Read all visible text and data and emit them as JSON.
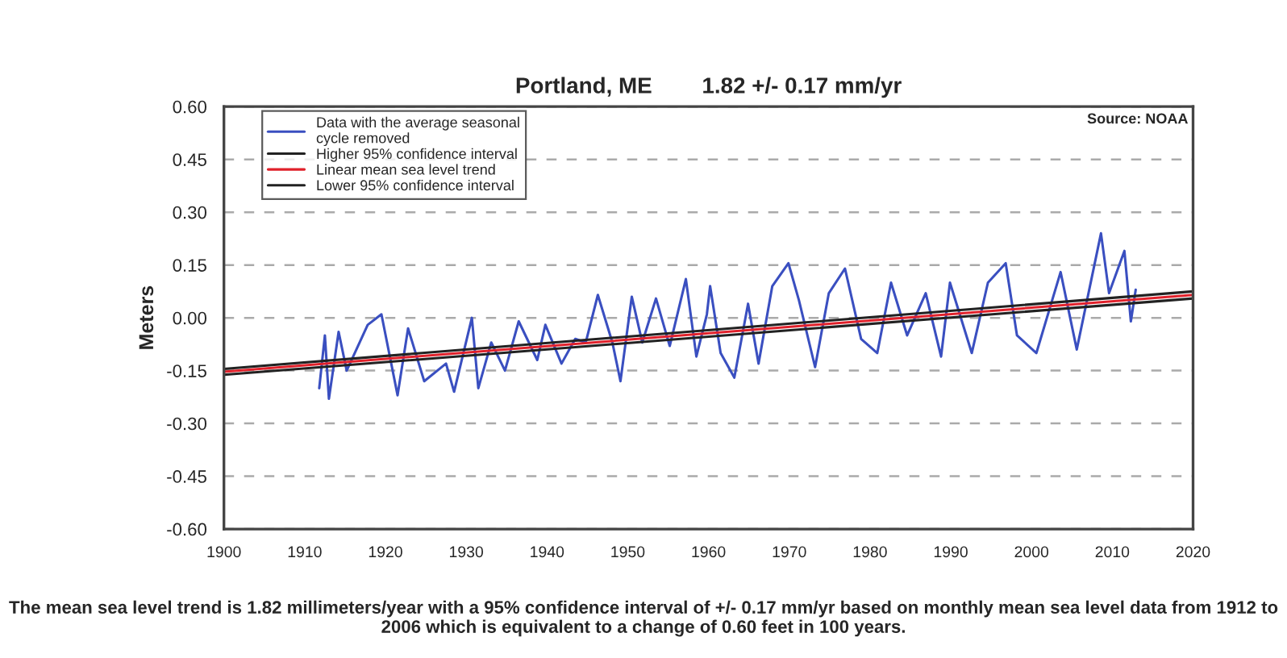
{
  "chart_data": {
    "type": "line",
    "title": "Portland, ME        1.82 +/- 0.17 mm/yr",
    "ylabel": "Meters",
    "xlim": [
      1900,
      2020
    ],
    "xticks": [
      1900,
      1910,
      1920,
      1930,
      1940,
      1950,
      1960,
      1970,
      1980,
      1990,
      2000,
      2010,
      2020
    ],
    "ylim": [
      -0.6,
      0.6
    ],
    "yticks": [
      {
        "value": -0.6,
        "label": "-0.60"
      },
      {
        "value": -0.45,
        "label": "-0.45"
      },
      {
        "value": -0.3,
        "label": "-0.30"
      },
      {
        "value": -0.15,
        "label": "-0.15"
      },
      {
        "value": 0,
        "label": "0.00"
      },
      {
        "value": 0.15,
        "label": "0.15"
      },
      {
        "value": 0.3,
        "label": "0.30"
      },
      {
        "value": 0.45,
        "label": "0.45"
      },
      {
        "value": 0.6,
        "label": "0.60"
      }
    ],
    "grid": "y",
    "legend": "top left",
    "line_style": "solid",
    "marker": "none",
    "series": [
      {
        "name": "Data with the average seasonal\ncycle removed",
        "color": "#3a4fc0",
        "x": [
          1911.8,
          1912.5,
          1913,
          1914.2,
          1915.2,
          1917.8,
          1919.5,
          1921.5,
          1922.8,
          1924.8,
          1927.5,
          1928.5,
          1930.7,
          1931.5,
          1933.1,
          1934.8,
          1936.5,
          1938.8,
          1939.8,
          1941.8,
          1943.5,
          1944.8,
          1946.3,
          1948.1,
          1949.1,
          1950.5,
          1951.8,
          1953.5,
          1955.2,
          1957.2,
          1958.5,
          1959.8,
          1960.2,
          1961.5,
          1963.2,
          1964.9,
          1966.2,
          1967.9,
          1969.9,
          1971.2,
          1973.2,
          1974.9,
          1976.9,
          1978.9,
          1980.9,
          1982.6,
          1984.6,
          1986.9,
          1988.8,
          1989.9,
          1992.6,
          1994.6,
          1996.8,
          1998.2,
          2000.6,
          2003.6,
          2005.6,
          2008.6,
          2009.6,
          2011.5,
          2012.3,
          2012.9
        ],
        "values": [
          -0.2,
          -0.05,
          -0.23,
          -0.04,
          -0.15,
          -0.02,
          0.01,
          -0.22,
          -0.03,
          -0.18,
          -0.13,
          -0.21,
          0.0,
          -0.2,
          -0.07,
          -0.15,
          -0.01,
          -0.12,
          -0.02,
          -0.13,
          -0.06,
          -0.07,
          0.065,
          -0.07,
          -0.18,
          0.06,
          -0.07,
          0.055,
          -0.08,
          0.11,
          -0.11,
          0.01,
          0.09,
          -0.1,
          -0.17,
          0.04,
          -0.13,
          0.09,
          0.155,
          0.05,
          -0.14,
          0.07,
          0.14,
          -0.06,
          -0.1,
          0.1,
          -0.05,
          0.07,
          -0.11,
          0.1,
          -0.1,
          0.1,
          0.155,
          -0.05,
          -0.1,
          0.13,
          -0.09,
          0.24,
          0.07,
          0.19,
          -0.01,
          0.08
        ]
      },
      {
        "name": "Higher 95% confidence interval",
        "color": "#222222",
        "x": [
          1900,
          2020
        ],
        "values": [
          -0.145,
          0.075
        ]
      },
      {
        "name": "Linear mean sea level trend",
        "color": "#e0202a",
        "x": [
          1900,
          2020
        ],
        "values": [
          -0.153,
          0.065
        ]
      },
      {
        "name": "Lower 95% confidence interval",
        "color": "#222222",
        "x": [
          1900,
          2020
        ],
        "values": [
          -0.162,
          0.055
        ]
      }
    ],
    "annotations": [
      "Source: NOAA",
      "The mean sea level trend is 1.82 millimeters/year with a 95% confidence interval of +/- 0.17 mm/yr based on monthly mean sea level data from 1912 to 2006 which is equivalent to a change of 0.60 feet in 100 years."
    ]
  }
}
